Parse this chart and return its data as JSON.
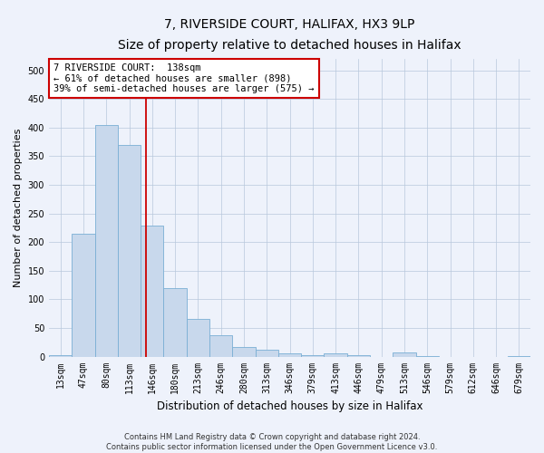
{
  "title1": "7, RIVERSIDE COURT, HALIFAX, HX3 9LP",
  "title2": "Size of property relative to detached houses in Halifax",
  "xlabel": "Distribution of detached houses by size in Halifax",
  "ylabel": "Number of detached properties",
  "categories": [
    "13sqm",
    "47sqm",
    "80sqm",
    "113sqm",
    "146sqm",
    "180sqm",
    "213sqm",
    "246sqm",
    "280sqm",
    "313sqm",
    "346sqm",
    "379sqm",
    "413sqm",
    "446sqm",
    "479sqm",
    "513sqm",
    "546sqm",
    "579sqm",
    "612sqm",
    "646sqm",
    "679sqm"
  ],
  "values": [
    3,
    215,
    405,
    370,
    228,
    119,
    65,
    38,
    17,
    12,
    6,
    3,
    5,
    2,
    0,
    7,
    1,
    0,
    0,
    0,
    1
  ],
  "bar_color": "#c8d8ec",
  "bar_edge_color": "#7aafd4",
  "marker_color": "#cc0000",
  "annotation_line1": "7 RIVERSIDE COURT:  138sqm",
  "annotation_line2": "← 61% of detached houses are smaller (898)",
  "annotation_line3": "39% of semi-detached houses are larger (575) →",
  "annotation_box_color": "#ffffff",
  "annotation_border_color": "#cc0000",
  "ylim": [
    0,
    520
  ],
  "background_color": "#eef2fb",
  "footer_text": "Contains HM Land Registry data © Crown copyright and database right 2024.\nContains public sector information licensed under the Open Government Licence v3.0.",
  "title1_fontsize": 10,
  "title2_fontsize": 9,
  "xlabel_fontsize": 8.5,
  "ylabel_fontsize": 8,
  "tick_fontsize": 7,
  "annotation_fontsize": 7.5,
  "footer_fontsize": 6
}
